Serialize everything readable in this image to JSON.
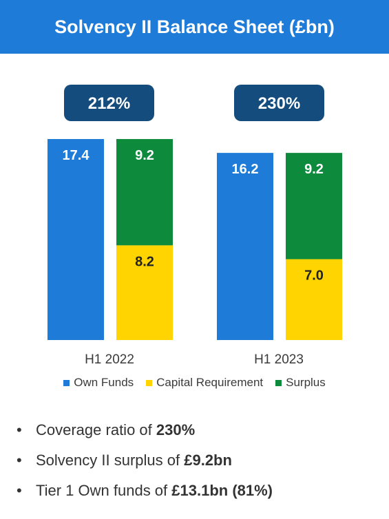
{
  "title": "Solvency II Balance Sheet (£bn)",
  "colors": {
    "banner": "#1f7bd8",
    "own_funds": "#1f7bd8",
    "capital_requirement": "#ffd400",
    "surplus": "#0d8a3c",
    "ratio_badge": "#144c7d"
  },
  "chart_data": {
    "type": "bar",
    "categories": [
      "H1 2022",
      "H1 2023"
    ],
    "ratios": [
      "212%",
      "230%"
    ],
    "series": [
      {
        "name": "Own Funds",
        "values": [
          17.4,
          16.2
        ],
        "labels": [
          "17.4",
          "16.2"
        ]
      },
      {
        "name": "Capital Requirement",
        "values": [
          8.2,
          7.0
        ],
        "labels": [
          "8.2",
          "7.0"
        ]
      },
      {
        "name": "Surplus",
        "values": [
          9.2,
          9.2
        ],
        "labels": [
          "9.2",
          "9.2"
        ]
      }
    ],
    "legend": [
      "Own Funds",
      "Capital Requirement",
      "Surplus"
    ],
    "legend_position": "bottom"
  },
  "bullets": [
    {
      "marker": "•",
      "text": "Coverage ratio of ",
      "bold": "230%"
    },
    {
      "marker": "•",
      "text": "Solvency II surplus of ",
      "bold": "£9.2bn"
    },
    {
      "marker": "•",
      "text": "Tier 1 Own funds of ",
      "bold": "£13.1bn (81%)"
    }
  ]
}
